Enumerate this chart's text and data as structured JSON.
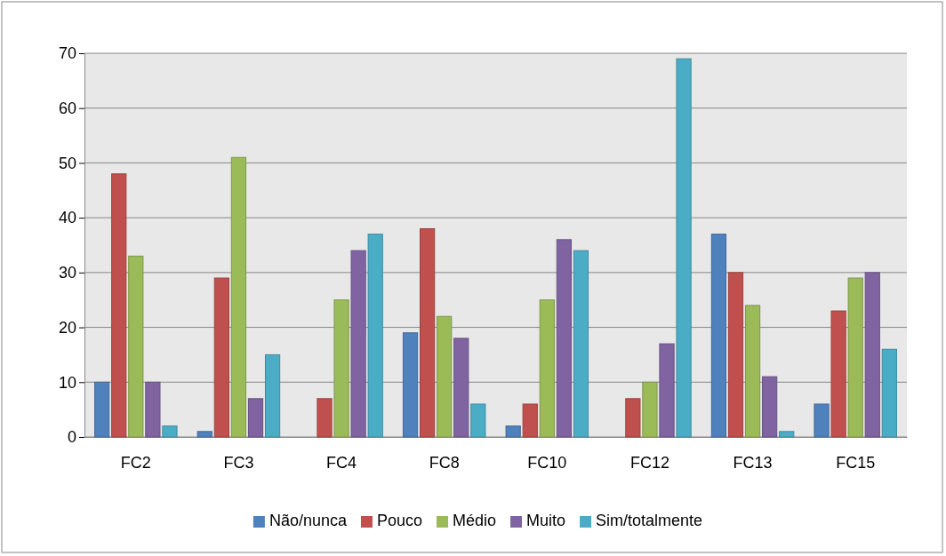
{
  "chart_data": {
    "type": "bar",
    "categories": [
      "FC2",
      "FC3",
      "FC4",
      "FC8",
      "FC10",
      "FC12",
      "FC13",
      "FC15"
    ],
    "series": [
      {
        "name": "Não/nunca",
        "color": "#4f81bd",
        "values": [
          10,
          1,
          0,
          19,
          2,
          0,
          37,
          6
        ]
      },
      {
        "name": "Pouco",
        "color": "#c0504d",
        "values": [
          48,
          29,
          7,
          38,
          6,
          7,
          30,
          23
        ]
      },
      {
        "name": "Médio",
        "color": "#9bbb59",
        "values": [
          33,
          51,
          25,
          22,
          25,
          10,
          24,
          29
        ]
      },
      {
        "name": "Muito",
        "color": "#8064a2",
        "values": [
          10,
          7,
          34,
          18,
          36,
          17,
          11,
          30
        ]
      },
      {
        "name": "Sim/totalmente",
        "color": "#4bacc6",
        "values": [
          2,
          15,
          37,
          6,
          34,
          69,
          1,
          16
        ]
      }
    ],
    "ylim": [
      0,
      70
    ],
    "yticks": [
      0,
      10,
      20,
      30,
      40,
      50,
      60,
      70
    ],
    "grid": "y",
    "legend": "bottom"
  }
}
